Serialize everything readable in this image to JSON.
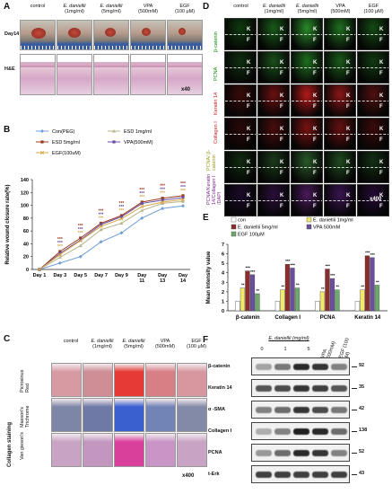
{
  "panels": {
    "A": {
      "label": "A",
      "columns": [
        [
          "control",
          ""
        ],
        [
          "E. daniellii",
          "(1mg/ml)"
        ],
        [
          "E. daniellii",
          "(5mg/ml)"
        ],
        [
          "VPA",
          "(500mM)"
        ],
        [
          "EGF",
          "(100 μM)"
        ]
      ],
      "rows": [
        "Day14",
        "H&E"
      ],
      "magnification": "x40"
    },
    "B": {
      "label": "B"
    },
    "C": {
      "label": "C",
      "columns": [
        [
          "control",
          ""
        ],
        [
          "E. daniellii",
          "(1mg/ml)"
        ],
        [
          "E. daniellii",
          "(5mg/ml)"
        ],
        [
          "VPA",
          "(500mM)"
        ],
        [
          "EGF",
          "(100 μM)"
        ]
      ],
      "group_label": "Collagen staining",
      "rows": [
        "Picrosinus Red",
        "Masson's Trichrome",
        "Van gieson's"
      ],
      "magnification": "x400"
    },
    "D": {
      "label": "D",
      "columns": [
        [
          "control",
          ""
        ],
        [
          "E. daniellii",
          "(1mg/ml)"
        ],
        [
          "E. daniellii",
          "(5mg/ml)"
        ],
        [
          "VPA",
          "(500mM)"
        ],
        [
          "EGF",
          "(100 μM)"
        ]
      ],
      "rows": [
        "β-catenin",
        "PCNA",
        "Keratin 14",
        "Collagen I",
        "PCNA/ β-catenin",
        "PCNA/Keratin 14/Collagen I /DAPI"
      ],
      "tile_marks": [
        "K",
        "F"
      ],
      "magnification": "x400"
    },
    "E": {
      "label": "E"
    },
    "F": {
      "label": "F",
      "conc_title": "E. daniellii (mg/ml)",
      "conc_values": [
        "0",
        "1",
        "5"
      ],
      "lane_extra": [
        "VPA (500mM)",
        "EGF (100 μM)"
      ],
      "bands": [
        {
          "name": "β-catenin",
          "kda": "92"
        },
        {
          "name": "Keratin 14",
          "kda": "35"
        },
        {
          "name": "α -SMA",
          "kda": "42"
        },
        {
          "name": "Collagen I",
          "kda": "138"
        },
        {
          "name": "PCNA",
          "kda": "52"
        },
        {
          "name": "t-Erk",
          "kda": "43"
        }
      ]
    }
  },
  "chart_data": [
    {
      "type": "line",
      "title": "",
      "xlabel": "",
      "ylabel": "Relative wound closure rate(%)",
      "categories": [
        "Day 1",
        "Day 3",
        "Day 5",
        "Day 7",
        "Day 9",
        "Day 11",
        "Day 13",
        "Day 14"
      ],
      "ylim": [
        0,
        140
      ],
      "yticks": [
        "0",
        "20",
        "40",
        "60",
        "80",
        "100",
        "120",
        "140"
      ],
      "legend": "top-left",
      "series": [
        {
          "name": "Con(PEG)",
          "color": "#6f9fd8",
          "marker": "diamond",
          "values": [
            0,
            10,
            20,
            43,
            57,
            80,
            95,
            99
          ]
        },
        {
          "name": "ESD 1mg/ml",
          "color": "#b7b48a",
          "marker": "triangle",
          "values": [
            0,
            19,
            37,
            62,
            72,
            92,
            103,
            106
          ]
        },
        {
          "name": "ESD 5mg/ml",
          "color": "#9a3a1e",
          "marker": "square",
          "values": [
            0,
            28,
            49,
            72,
            84,
            105,
            111,
            115
          ]
        },
        {
          "name": "VPA(500mM)",
          "color": "#6a4ea0",
          "marker": "square",
          "values": [
            0,
            25,
            46,
            70,
            82,
            103,
            108,
            112
          ]
        },
        {
          "name": "EGF(100uM)",
          "color": "#d6a84a",
          "marker": "x",
          "values": [
            0,
            23,
            45,
            67,
            79,
            98,
            105,
            109
          ]
        }
      ],
      "annotation": "***"
    },
    {
      "type": "bar",
      "title": "",
      "xlabel": "",
      "ylabel": "Mean intensity value",
      "categories": [
        "β-catenin",
        "Collagen I",
        "PCNA",
        "Keratin 14"
      ],
      "ylim": [
        0,
        7
      ],
      "yticks": [
        "0",
        "1",
        "2",
        "3",
        "4",
        "5",
        "6",
        "7"
      ],
      "legend": "top",
      "series": [
        {
          "name": "con",
          "color": "#ffffff",
          "values": [
            1,
            1,
            1,
            1
          ]
        },
        {
          "name": "E. daniellii 1mg/ml",
          "color": "#f3e96a",
          "values": [
            2.4,
            2.2,
            2.0,
            2.2
          ]
        },
        {
          "name": "E. daniellii 5mg/ml",
          "color": "#8b2d2d",
          "values": [
            4.2,
            4.9,
            4.4,
            5.8
          ]
        },
        {
          "name": "VPA 500mM",
          "color": "#6b4f9e",
          "values": [
            3.8,
            4.5,
            3.4,
            5.6
          ]
        },
        {
          "name": "EGF 100μM",
          "color": "#6fa86b",
          "values": [
            1.8,
            2.4,
            2.2,
            2.7
          ]
        }
      ],
      "annotations": [
        "**",
        "***"
      ]
    }
  ]
}
